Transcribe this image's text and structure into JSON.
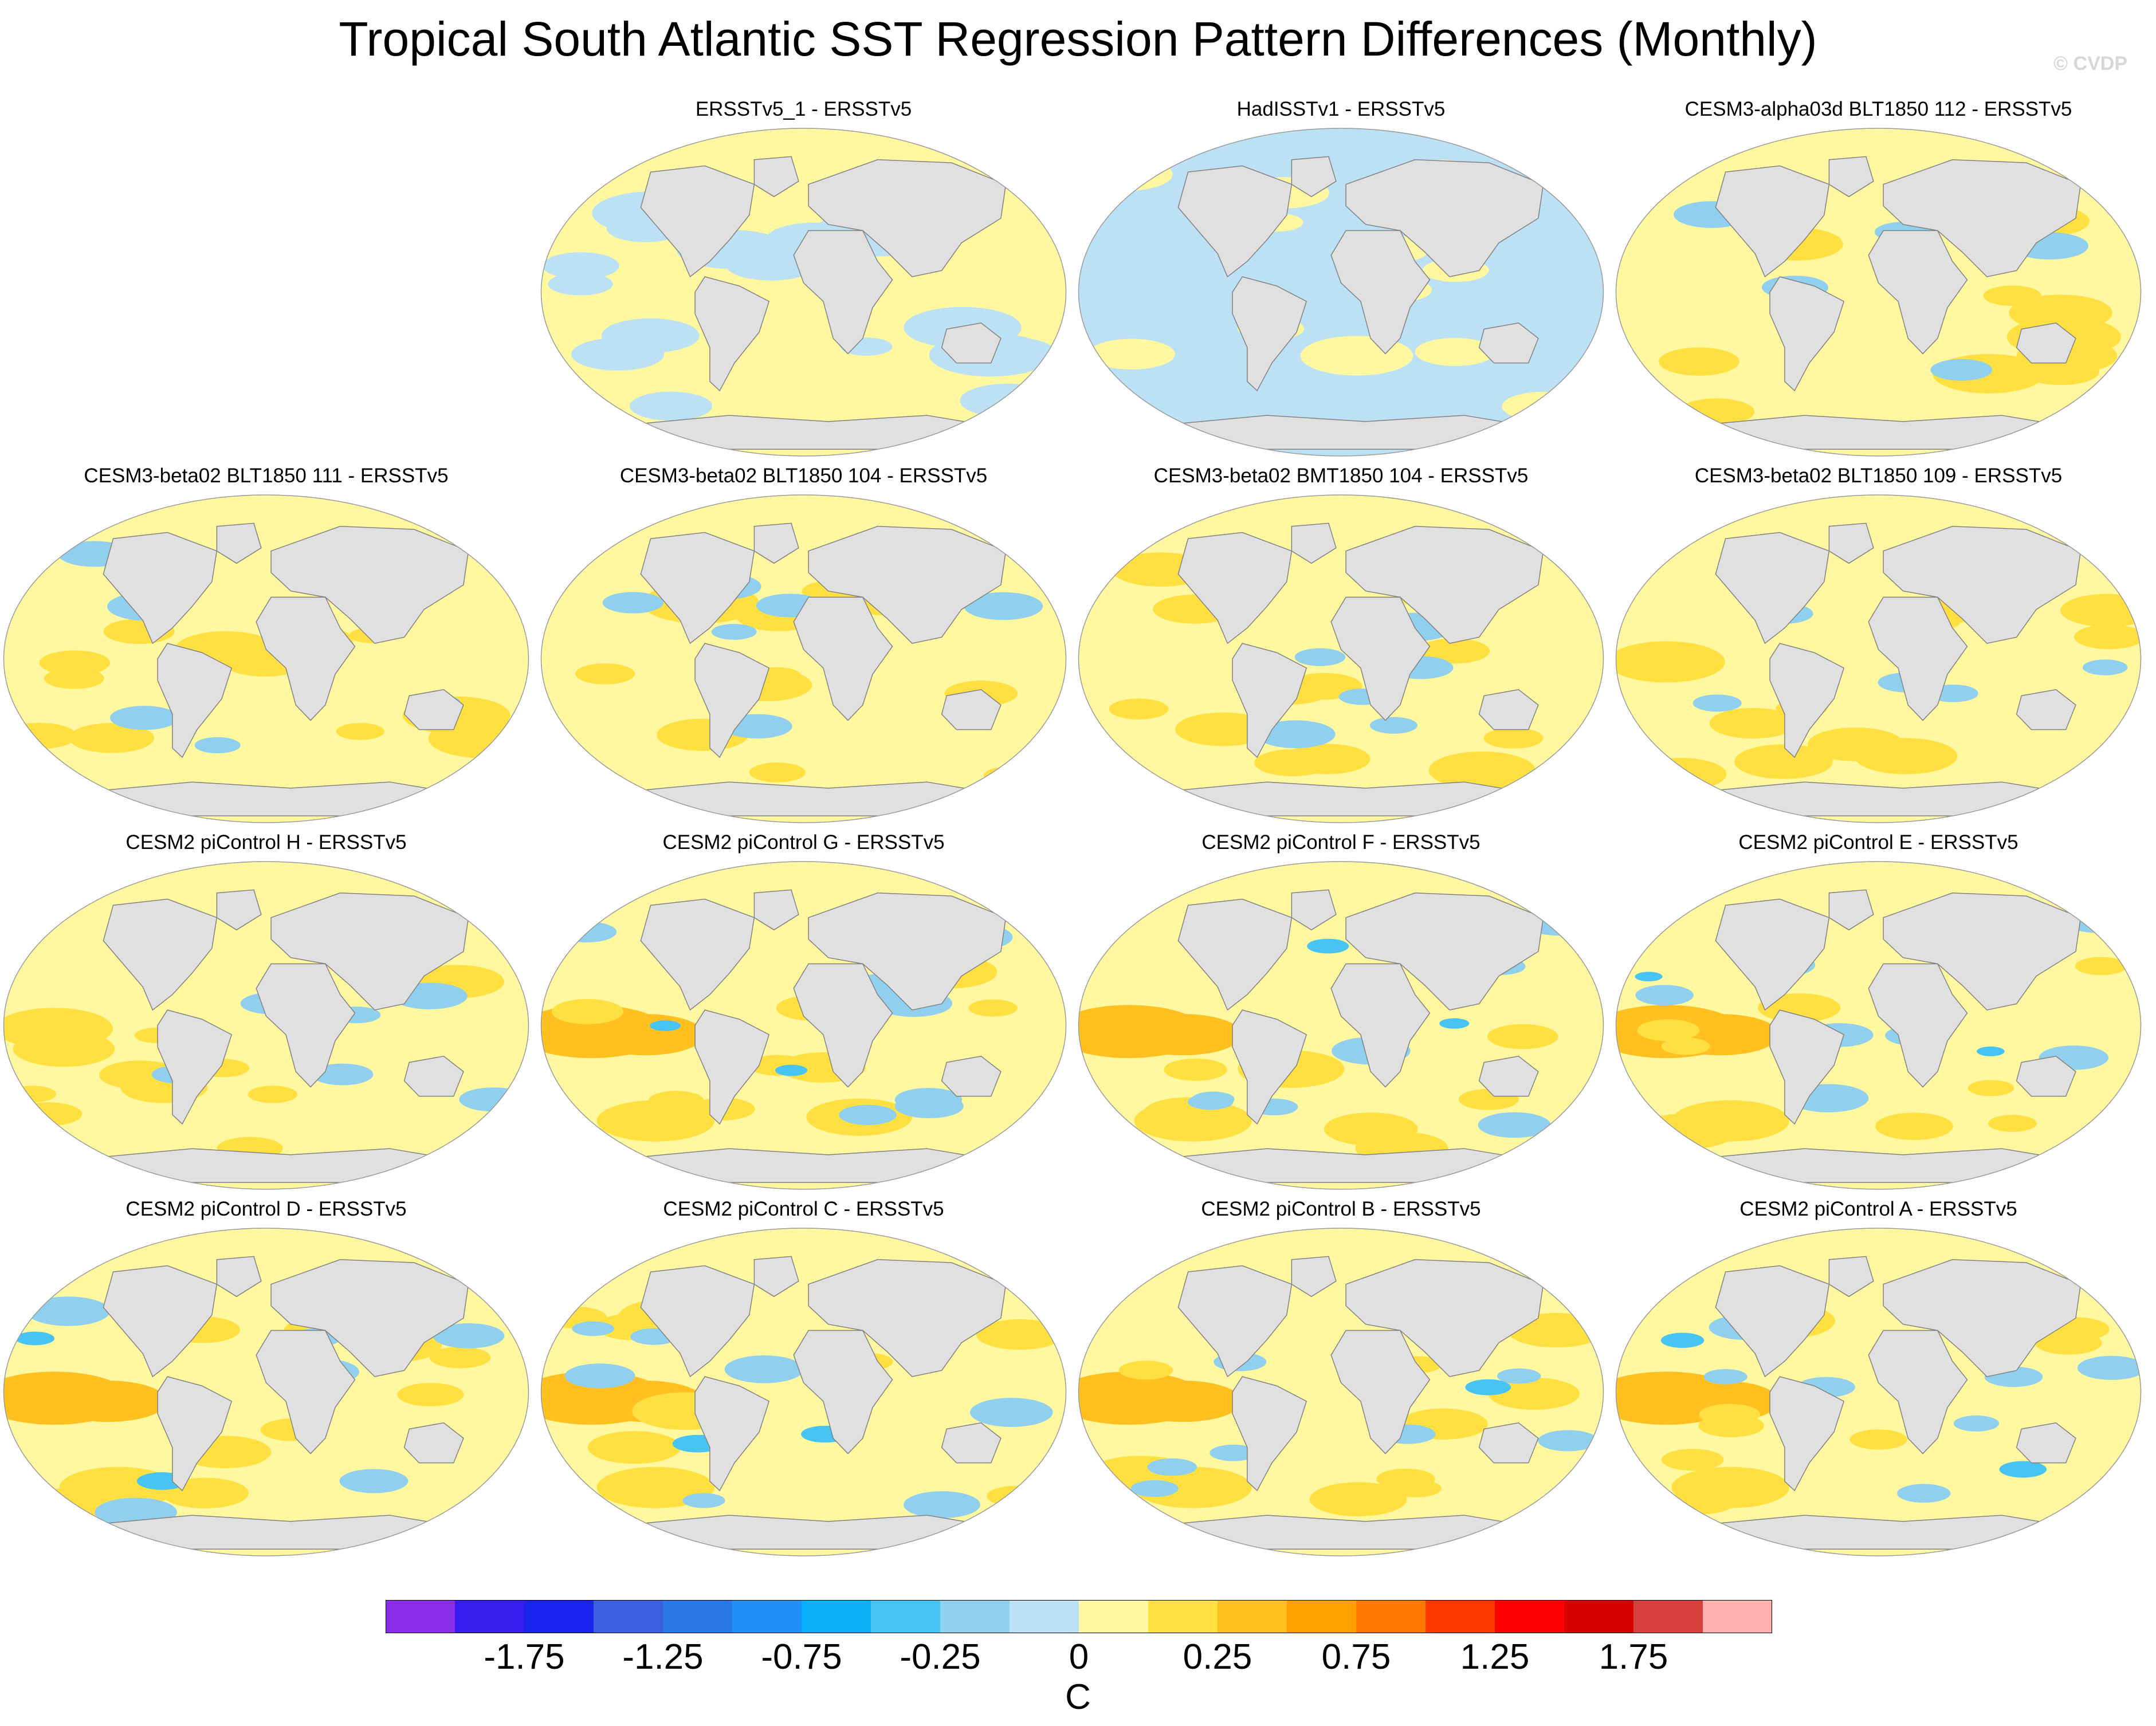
{
  "title": "Tropical South Atlantic SST Regression Pattern Differences (Monthly)",
  "watermark": "© CVDP",
  "panels": [
    {
      "label": "ERSSTv5_1 - ERSSTv5",
      "pattern": "weak-mixed"
    },
    {
      "label": "HadISSTv1 - ERSSTv5",
      "pattern": "weak-negative"
    },
    {
      "label": "CESM3-alpha03d BLT1850 112 - ERSSTv5",
      "pattern": "mixed"
    },
    {
      "label": "CESM3-beta02 BLT1850 111 - ERSSTv5",
      "pattern": "mixed"
    },
    {
      "label": "CESM3-beta02 BLT1850 104 - ERSSTv5",
      "pattern": "mixed"
    },
    {
      "label": "CESM3-beta02 BMT1850 104 - ERSSTv5",
      "pattern": "mixed"
    },
    {
      "label": "CESM3-beta02 BLT1850 109 - ERSSTv5",
      "pattern": "positive-pacific"
    },
    {
      "label": "CESM2 piControl H - ERSSTv5",
      "pattern": "positive-pacific"
    },
    {
      "label": "CESM2 piControl G - ERSSTv5",
      "pattern": "strong-positive-pacific"
    },
    {
      "label": "CESM2 piControl F - ERSSTv5",
      "pattern": "strong-positive-pacific"
    },
    {
      "label": "CESM2 piControl E - ERSSTv5",
      "pattern": "strong-positive-pacific"
    },
    {
      "label": "CESM2 piControl D - ERSSTv5",
      "pattern": "strong-positive-pacific"
    },
    {
      "label": "CESM2 piControl C - ERSSTv5",
      "pattern": "strong-positive-pacific"
    },
    {
      "label": "CESM2 piControl B - ERSSTv5",
      "pattern": "strong-positive-pacific"
    },
    {
      "label": "CESM2 piControl A - ERSSTv5",
      "pattern": "strong-positive-pacific"
    }
  ],
  "colorbar": {
    "colors": [
      "#8a2ce8",
      "#3a1cf0",
      "#1a24f0",
      "#3a60e0",
      "#2a78e8",
      "#2090f8",
      "#08b0f8",
      "#48c4f4",
      "#90d0ee",
      "#bce0f4",
      "#fff8a0",
      "#ffe040",
      "#ffc020",
      "#ffa000",
      "#ff7800",
      "#ff3800",
      "#ff0000",
      "#d80000",
      "#d84040",
      "#ffb0b0"
    ],
    "tick_labels": [
      "-1.75",
      "-1.25",
      "-0.75",
      "-0.25",
      "0",
      "0.25",
      "0.75",
      "1.25",
      "1.75"
    ],
    "units": "C"
  },
  "palette": {
    "land": "#e0e0e0",
    "coast": "#808080",
    "light_yellow": "#fff8a0",
    "yellow": "#ffe040",
    "orange": "#ffc020",
    "light_blue": "#bce0f4",
    "blue": "#90d0ee",
    "mid_blue": "#48c4f4"
  }
}
